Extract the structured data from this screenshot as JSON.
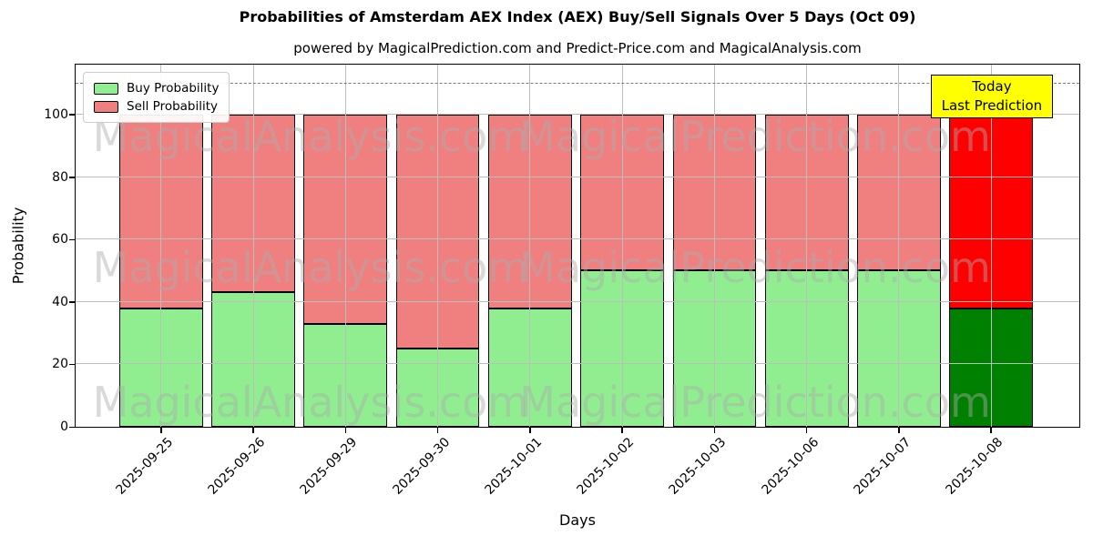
{
  "figure": {
    "title": "Probabilities of Amsterdam AEX Index (AEX) Buy/Sell Signals Over 5 Days (Oct 09)",
    "subtitle": "powered by MagicalPrediction.com and Predict-Price.com and MagicalAnalysis.com"
  },
  "legend": {
    "items": [
      {
        "label": "Buy Probability",
        "color": "#90ee90"
      },
      {
        "label": "Sell Probability",
        "color": "#f08080"
      }
    ]
  },
  "annotation": {
    "lines": [
      "Today",
      "Last Prediction"
    ],
    "bg_color": "#ffff00"
  },
  "watermarks": {
    "left_text": "MagicalAnalysis.com",
    "right_text": "MagicalPrediction.com"
  },
  "colors": {
    "buy": "#90ee90",
    "sell": "#f08080",
    "buy_today": "#008000",
    "sell_today": "#ff0000",
    "grid": "#bdbdbd",
    "dashed": "#7a7a7a",
    "annotation_bg": "#ffff00"
  },
  "chart_data": {
    "type": "bar",
    "stacked": true,
    "title": "Probabilities of Amsterdam AEX Index (AEX) Buy/Sell Signals Over 5 Days (Oct 09)",
    "xlabel": "Days",
    "ylabel": "Probability",
    "categories": [
      "2025-09-25",
      "2025-09-26",
      "2025-09-29",
      "2025-09-30",
      "2025-10-01",
      "2025-10-02",
      "2025-10-03",
      "2025-10-06",
      "2025-10-07",
      "2025-10-08"
    ],
    "series": [
      {
        "name": "Buy Probability",
        "values": [
          38,
          43,
          33,
          25,
          38,
          50,
          50,
          50,
          50,
          38
        ],
        "color": "#90ee90",
        "today_color": "#008000"
      },
      {
        "name": "Sell Probability",
        "values": [
          62,
          57,
          67,
          75,
          62,
          50,
          50,
          50,
          50,
          62
        ],
        "color": "#f08080",
        "today_color": "#ff0000"
      }
    ],
    "bar_totals": [
      100,
      100,
      100,
      100,
      100,
      100,
      100,
      100,
      100,
      100
    ],
    "today_index": 9,
    "ylim": [
      0,
      116
    ],
    "yticks": [
      0,
      20,
      40,
      60,
      80,
      100
    ],
    "dashed_hline": 110,
    "grid": true,
    "legend_position": "upper left"
  }
}
